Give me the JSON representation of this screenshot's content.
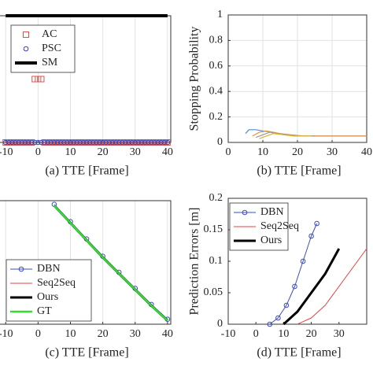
{
  "chart_data": [
    {
      "type": "scatter",
      "xlabel": "(a) TTE [Frame]",
      "xlim": [
        -12,
        41
      ],
      "ylim": [
        0,
        1
      ],
      "xticks": [
        -10,
        0,
        10,
        20,
        30,
        40
      ],
      "grid": true,
      "legend": "upper left",
      "series": [
        {
          "name": "AC",
          "color": "#e0504a",
          "marker": "s",
          "linewidth": 0,
          "x": [
            -10,
            -9,
            -8,
            -7,
            -6,
            -5,
            -4,
            -3,
            -2,
            -1,
            0,
            1,
            2,
            3,
            4,
            5,
            6,
            7,
            8,
            9,
            10,
            11,
            12,
            13,
            14,
            15,
            16,
            17,
            18,
            19,
            20,
            21,
            22,
            23,
            24,
            25,
            26,
            27,
            28,
            29,
            30,
            31,
            32,
            33,
            34,
            35,
            36,
            37,
            38,
            39,
            40
          ],
          "values": [
            0,
            0,
            0,
            0,
            0,
            0,
            0,
            0,
            0,
            0.5,
            0.5,
            0.5,
            0,
            0,
            0,
            0,
            0,
            0,
            0,
            0,
            0,
            0,
            0,
            0,
            0,
            0,
            0,
            0,
            0,
            0,
            0,
            0,
            0,
            0,
            0,
            0,
            0,
            0,
            0,
            0,
            0,
            0,
            0,
            0,
            0,
            0,
            0,
            0,
            0,
            0,
            0
          ]
        },
        {
          "name": "PSC",
          "color": "#3344bb",
          "marker": "o",
          "linewidth": 0,
          "x": [
            -10,
            -9,
            -8,
            -7,
            -6,
            -5,
            -4,
            -3,
            -2,
            -1,
            0,
            1,
            2,
            3,
            4,
            5,
            6,
            7,
            8,
            9,
            10,
            11,
            12,
            13,
            14,
            15,
            16,
            17,
            18,
            19,
            20,
            21,
            22,
            23,
            24,
            25,
            26,
            27,
            28,
            29,
            30,
            31,
            32,
            33,
            34,
            35,
            36,
            37,
            38,
            39,
            40
          ],
          "values": [
            0,
            0,
            0,
            0,
            0,
            0,
            0,
            0,
            0,
            0,
            0,
            0,
            0,
            0,
            0,
            0,
            0,
            0,
            0,
            0,
            0,
            0,
            0,
            0,
            0,
            0,
            0,
            0,
            0,
            0,
            0,
            0,
            0,
            0,
            0,
            0,
            0,
            0,
            0,
            0,
            0,
            0,
            0,
            0,
            0,
            0,
            0,
            0,
            0,
            0,
            0
          ]
        },
        {
          "name": "SM",
          "color": "#000000",
          "marker": "",
          "linewidth": 4,
          "x": [
            -10,
            40
          ],
          "values": [
            1,
            1
          ]
        }
      ]
    },
    {
      "type": "line",
      "xlabel": "(b) TTE [Frame]",
      "ylabel": "Stopping Probability",
      "xlim": [
        0,
        40
      ],
      "ylim": [
        0,
        1
      ],
      "xticks": [
        0,
        10,
        20,
        30,
        40
      ],
      "yticks": [
        0,
        0.2,
        0.4,
        0.6,
        0.8,
        1
      ],
      "grid": true,
      "series": [
        {
          "color": "#4a90d0",
          "linewidth": 1.2,
          "x": [
            5,
            6,
            8,
            10,
            13,
            16,
            20,
            30,
            40
          ],
          "values": [
            0.07,
            0.1,
            0.1,
            0.09,
            0.08,
            0.06,
            0.05,
            0.05,
            0.05
          ]
        },
        {
          "color": "#e8913a",
          "linewidth": 1.2,
          "x": [
            7,
            9,
            11,
            13,
            15,
            18,
            22,
            30,
            40
          ],
          "values": [
            0.05,
            0.08,
            0.09,
            0.08,
            0.07,
            0.06,
            0.05,
            0.05,
            0.05
          ]
        },
        {
          "color": "#9a9a9a",
          "linewidth": 1.2,
          "x": [
            8,
            10,
            12,
            14,
            17,
            20,
            25
          ],
          "values": [
            0.04,
            0.06,
            0.08,
            0.07,
            0.06,
            0.05,
            0.05
          ]
        },
        {
          "color": "#d4b830",
          "linewidth": 1.2,
          "x": [
            9,
            11,
            13,
            16,
            19,
            24
          ],
          "values": [
            0.03,
            0.05,
            0.07,
            0.06,
            0.05,
            0.05
          ]
        }
      ]
    },
    {
      "type": "line",
      "xlabel": "(c) TTE [Frame]",
      "xlim": [
        -12,
        41
      ],
      "ylim": [
        0,
        1
      ],
      "xticks": [
        -10,
        0,
        10,
        20,
        30,
        40
      ],
      "grid": true,
      "legend": "lower left",
      "series": [
        {
          "name": "DBN",
          "color": "#3b4cc0",
          "marker": "o",
          "linewidth": 1,
          "x": [
            5,
            10,
            15,
            20,
            25,
            30,
            35,
            40
          ],
          "values": [
            0.97,
            0.83,
            0.69,
            0.55,
            0.42,
            0.29,
            0.16,
            0.04
          ]
        },
        {
          "name": "Seq2Seq",
          "color": "#e04040",
          "marker": "",
          "linewidth": 1,
          "x": [
            5,
            10,
            15,
            20,
            25,
            30,
            35,
            40
          ],
          "values": [
            0.96,
            0.82,
            0.68,
            0.55,
            0.41,
            0.28,
            0.15,
            0.03
          ]
        },
        {
          "name": "Ours",
          "color": "#000000",
          "marker": "",
          "linewidth": 3,
          "x": [
            5,
            10,
            15,
            20,
            25,
            30,
            35,
            40
          ],
          "values": [
            0.96,
            0.82,
            0.68,
            0.54,
            0.41,
            0.28,
            0.15,
            0.03
          ]
        },
        {
          "name": "GT",
          "color": "#33dd33",
          "marker": "",
          "linewidth": 2.5,
          "x": [
            5,
            10,
            15,
            20,
            25,
            30,
            35,
            40
          ],
          "values": [
            0.96,
            0.82,
            0.68,
            0.54,
            0.41,
            0.28,
            0.15,
            0.03
          ]
        }
      ]
    },
    {
      "type": "line",
      "xlabel": "(d) TTE [Frame]",
      "ylabel": "Prediction Errors [m]",
      "xlim": [
        -10,
        40
      ],
      "ylim": [
        0,
        0.2
      ],
      "xticks": [
        -10,
        0,
        10,
        20,
        30
      ],
      "yticks": [
        0,
        0.05,
        0.1,
        0.15,
        0.2
      ],
      "grid": false,
      "legend": "upper left",
      "series": [
        {
          "name": "DBN",
          "color": "#3b4cc0",
          "marker": "o",
          "linewidth": 1,
          "x": [
            5,
            8,
            11,
            14,
            17,
            20,
            22
          ],
          "values": [
            0,
            0.01,
            0.03,
            0.06,
            0.1,
            0.14,
            0.16
          ]
        },
        {
          "name": "Seq2Seq",
          "color": "#e04040",
          "marker": "",
          "linewidth": 1,
          "x": [
            15,
            20,
            25,
            30,
            35,
            40
          ],
          "values": [
            0,
            0.01,
            0.03,
            0.06,
            0.09,
            0.12
          ]
        },
        {
          "name": "Ours",
          "color": "#000000",
          "marker": "",
          "linewidth": 3,
          "x": [
            10,
            15,
            20,
            25,
            30
          ],
          "values": [
            0,
            0.02,
            0.05,
            0.08,
            0.12
          ]
        }
      ]
    }
  ]
}
